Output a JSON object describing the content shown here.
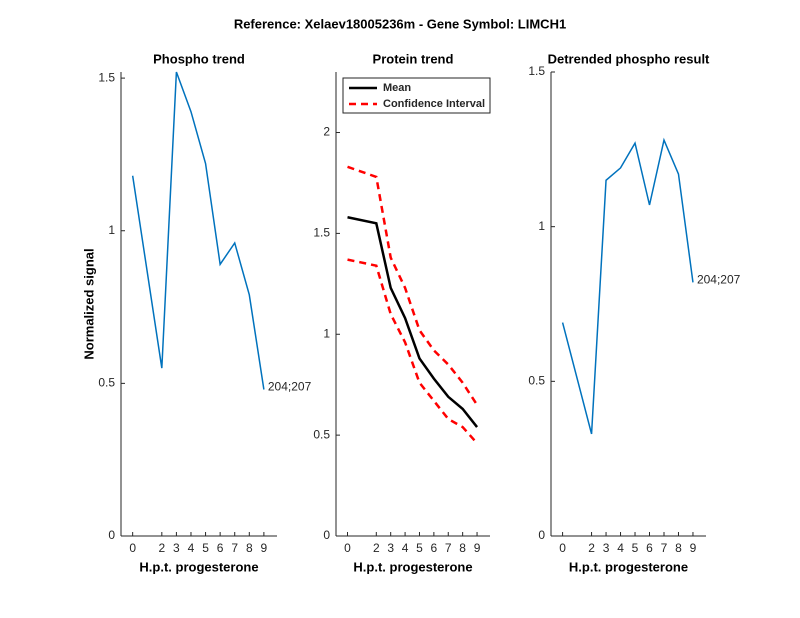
{
  "title": "Reference:  Xelaev18005236m - Gene Symbol:  LIMCH1",
  "chart_data": [
    {
      "type": "line",
      "title": "Phospho trend",
      "xlabel": "H.p.t. progesterone",
      "ylabel": "Normalized signal",
      "x": [
        0,
        2,
        3,
        4,
        5,
        6,
        7,
        8,
        9
      ],
      "series": [
        {
          "color": "#0072bd",
          "values": [
            1.18,
            0.55,
            1.52,
            1.39,
            1.22,
            0.89,
            0.96,
            0.79,
            0.48
          ]
        }
      ],
      "annotation": "204;207",
      "xlim": [
        -0.8,
        9.9
      ],
      "xticks": [
        0,
        2,
        3,
        4,
        5,
        6,
        7,
        8,
        9
      ],
      "ylim": [
        0,
        1.52
      ],
      "yticks": [
        0,
        0.5,
        1,
        1.5
      ]
    },
    {
      "type": "band-line",
      "title": "Protein trend",
      "xlabel": "H.p.t. progesterone",
      "x": [
        0,
        2,
        3,
        4,
        5,
        6,
        7,
        8,
        9
      ],
      "series": [
        {
          "name": "Mean",
          "color": "#000000",
          "values": [
            1.58,
            1.55,
            1.23,
            1.08,
            0.88,
            0.78,
            0.69,
            0.63,
            0.54
          ]
        },
        {
          "name": "Confidence Interval",
          "color": "#ff0000",
          "dash": true,
          "upper": [
            1.83,
            1.78,
            1.38,
            1.23,
            1.02,
            0.92,
            0.85,
            0.76,
            0.65
          ],
          "lower": [
            1.37,
            1.34,
            1.1,
            0.96,
            0.76,
            0.67,
            0.58,
            0.54,
            0.46
          ]
        }
      ],
      "legend": "upper-left",
      "xlim": [
        -0.8,
        9.9
      ],
      "xticks": [
        0,
        2,
        3,
        4,
        5,
        6,
        7,
        8,
        9
      ],
      "ylim": [
        0,
        2.3
      ],
      "yticks": [
        0,
        0.5,
        1,
        1.5,
        2
      ]
    },
    {
      "type": "line",
      "title": "Detrended phospho result",
      "xlabel": "H.p.t. progesterone",
      "x": [
        0,
        2,
        3,
        4,
        5,
        6,
        7,
        8,
        9
      ],
      "series": [
        {
          "color": "#0072bd",
          "values": [
            0.69,
            0.33,
            1.15,
            1.19,
            1.27,
            1.07,
            1.28,
            1.17,
            0.82
          ]
        }
      ],
      "annotation": "204;207",
      "xlim": [
        -0.8,
        9.9
      ],
      "xticks": [
        0,
        2,
        3,
        4,
        5,
        6,
        7,
        8,
        9
      ],
      "ylim": [
        0,
        1.5
      ],
      "yticks": [
        0,
        0.5,
        1,
        1.5
      ]
    }
  ]
}
